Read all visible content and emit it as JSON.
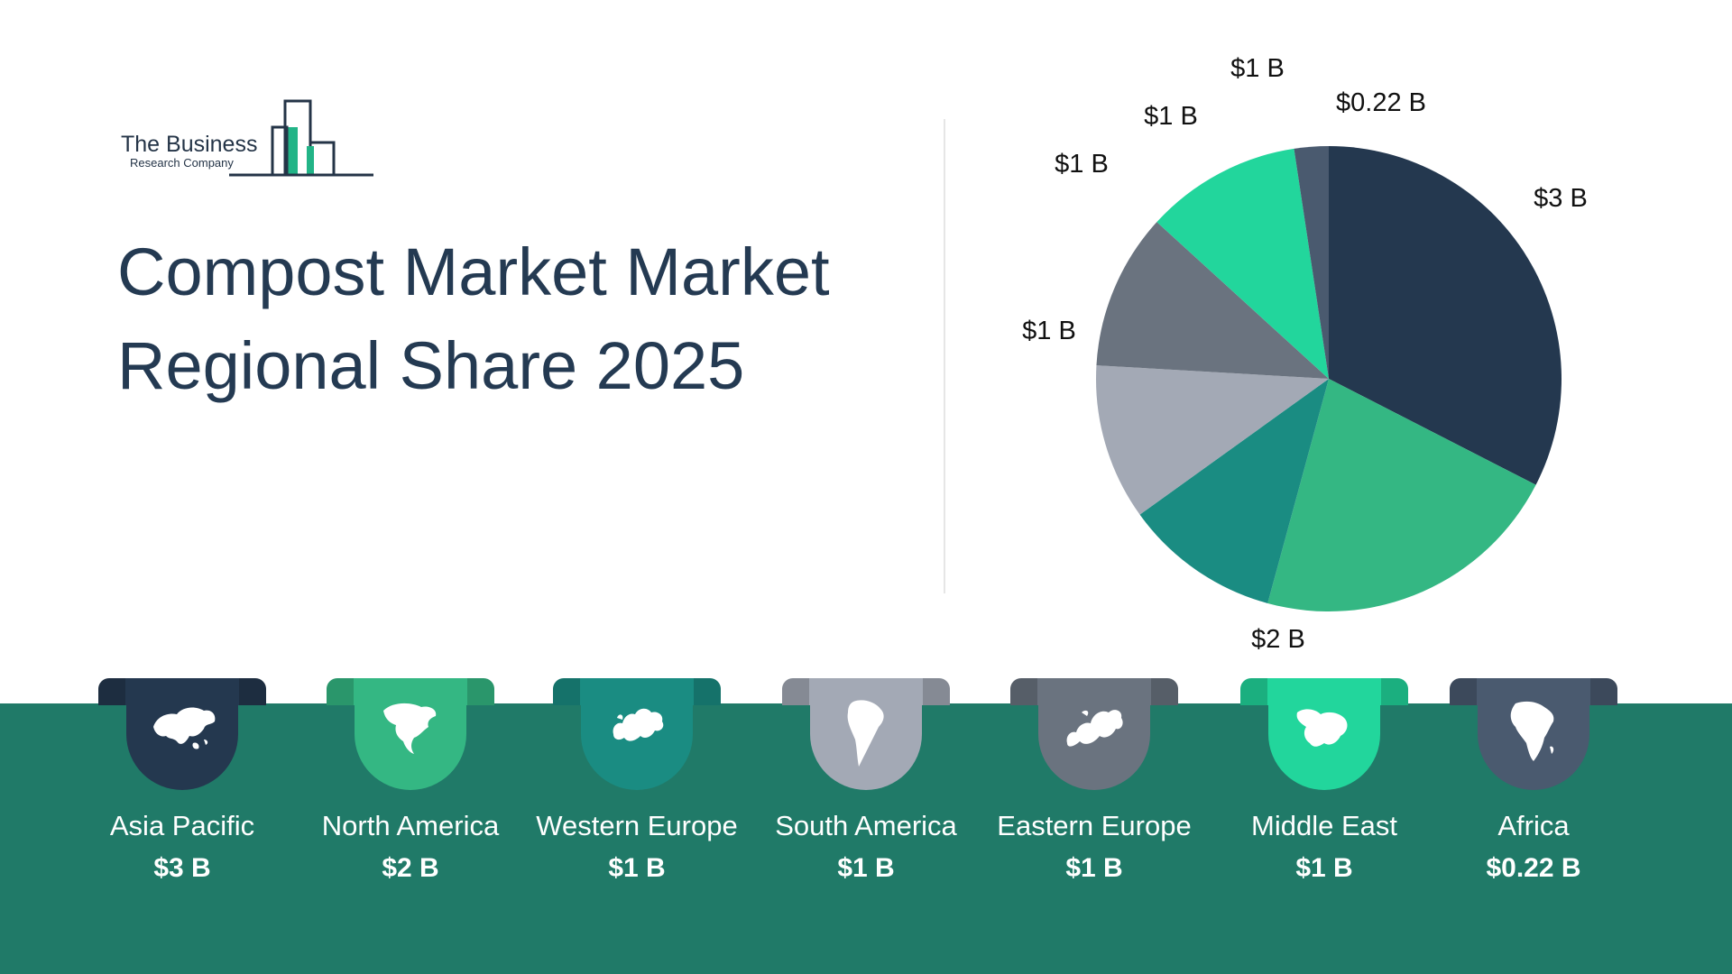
{
  "logo": {
    "line1": "The Business",
    "line2": "Research Company"
  },
  "title": {
    "line1": "Compost Market Market",
    "line2": "Regional Share 2025"
  },
  "colors": {
    "asia_pacific": "#24384f",
    "north_america": "#34b783",
    "western_europe": "#1a8c82",
    "south_america": "#a3a9b5",
    "eastern_europe": "#6a737f",
    "middle_east": "#22d69c",
    "africa": "#4a5a6f",
    "band": "#207a68"
  },
  "chart_data": {
    "type": "pie",
    "title": "Compost Market Market Regional Share 2025",
    "labels": [
      "Asia Pacific",
      "North America",
      "Western Europe",
      "South America",
      "Eastern Europe",
      "Middle East",
      "Africa"
    ],
    "values": [
      3,
      2,
      1,
      1,
      1,
      1,
      0.22
    ],
    "value_labels": [
      "$3 B",
      "$2 B",
      "$1 B",
      "$1 B",
      "$1 B",
      "$1 B",
      "$0.22 B"
    ],
    "slice_colors": [
      "#24384f",
      "#34b783",
      "#1a8c82",
      "#a3a9b5",
      "#6a737f",
      "#22d69c",
      "#4a5a6f"
    ],
    "unit": "$ B",
    "start": "12 o'clock",
    "direction": "clockwise"
  },
  "regions": [
    {
      "name": "Asia Pacific",
      "value": "$3 B",
      "icon": "asia-map-icon",
      "color": "#24384f"
    },
    {
      "name": "North America",
      "value": "$2 B",
      "icon": "north-america-map-icon",
      "color": "#34b783"
    },
    {
      "name": "Western Europe",
      "value": "$1 B",
      "icon": "western-europe-map-icon",
      "color": "#1a8c82"
    },
    {
      "name": "South America",
      "value": "$1 B",
      "icon": "south-america-map-icon",
      "color": "#a3a9b5"
    },
    {
      "name": "Eastern Europe",
      "value": "$1 B",
      "icon": "eastern-europe-map-icon",
      "color": "#6a737f"
    },
    {
      "name": "Middle East",
      "value": "$1 B",
      "icon": "middle-east-map-icon",
      "color": "#22d69c"
    },
    {
      "name": "Africa",
      "value": "$0.22 B",
      "icon": "africa-map-icon",
      "color": "#4a5a6f"
    }
  ]
}
